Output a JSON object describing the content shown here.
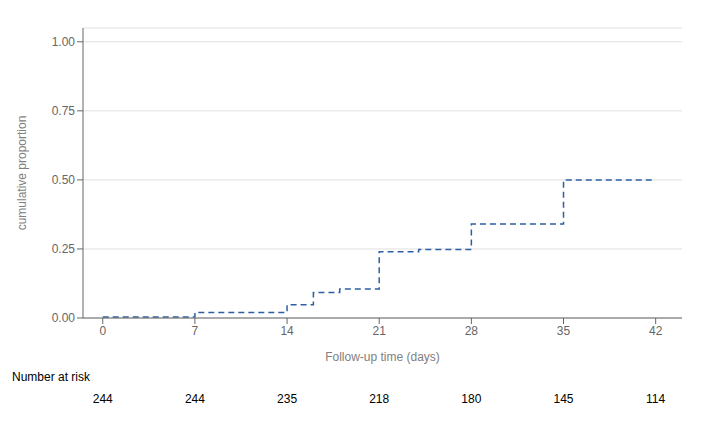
{
  "chart_data": {
    "type": "line",
    "x": [
      0,
      7,
      7,
      14,
      14,
      16,
      16,
      18,
      18,
      21,
      21,
      24,
      24,
      28,
      28,
      35,
      35,
      42
    ],
    "values": [
      0.004,
      0.004,
      0.02,
      0.02,
      0.048,
      0.048,
      0.092,
      0.092,
      0.105,
      0.105,
      0.24,
      0.24,
      0.248,
      0.248,
      0.34,
      0.34,
      0.5,
      0.5
    ],
    "color": "#2e5fa3",
    "line_style": "dashed",
    "xlabel": "Follow-up time (days)",
    "ylabel": "cumulative proportion",
    "xlim": [
      -1.5,
      44
    ],
    "ylim": [
      0.0,
      1.05
    ],
    "xticks": [
      0,
      7,
      14,
      21,
      28,
      35,
      42
    ],
    "yticks": [
      {
        "value": 0.0,
        "label": "0.00"
      },
      {
        "value": 0.25,
        "label": "0.25"
      },
      {
        "value": 0.5,
        "label": "0.50"
      },
      {
        "value": 0.75,
        "label": "0.75"
      },
      {
        "value": 1.0,
        "label": "1.00"
      }
    ],
    "grid": true,
    "risk_label": "Number at risk",
    "risk_times": [
      0,
      7,
      14,
      21,
      28,
      35,
      42
    ],
    "risk_numbers": [
      244,
      244,
      235,
      218,
      180,
      145,
      114
    ]
  }
}
